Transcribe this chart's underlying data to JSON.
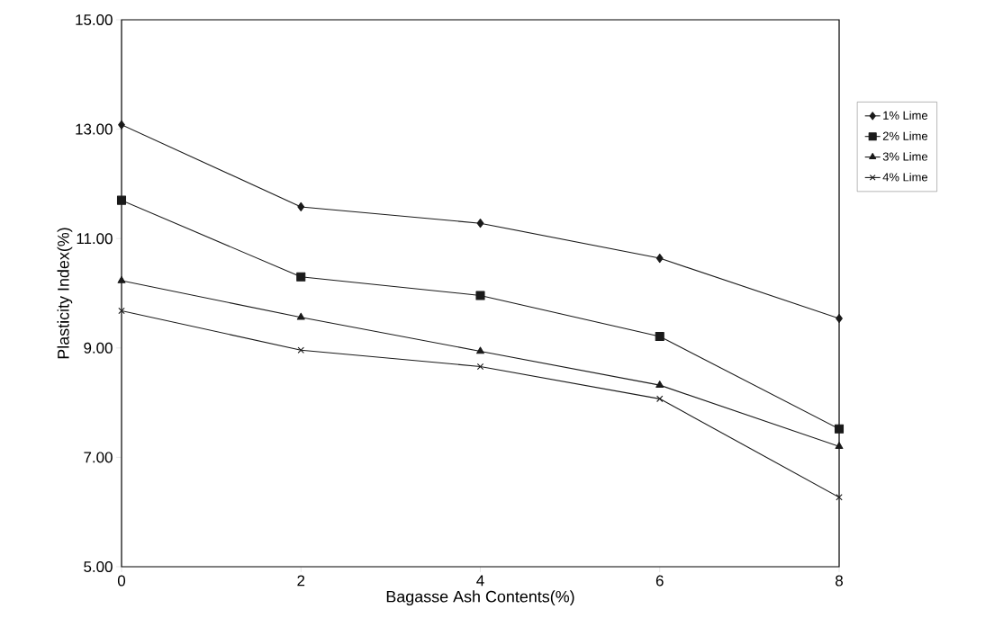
{
  "chart_data": {
    "type": "line",
    "xlabel": "Bagasse Ash Contents(%)",
    "ylabel": "Plasticity Index(%)",
    "x": [
      0,
      2,
      4,
      6,
      8
    ],
    "series": [
      {
        "name": "1% Lime",
        "color": "#1a1a1a",
        "marker": "diamond",
        "values": [
          13.08,
          11.58,
          11.28,
          10.64,
          9.54
        ]
      },
      {
        "name": "2% Lime",
        "color": "#1a1a1a",
        "marker": "square",
        "values": [
          11.7,
          10.3,
          9.96,
          9.21,
          7.52
        ]
      },
      {
        "name": "3% Lime",
        "color": "#1a1a1a",
        "marker": "triangle",
        "values": [
          10.23,
          9.56,
          8.94,
          8.32,
          7.2
        ]
      },
      {
        "name": "4% Lime",
        "color": "#1a1a1a",
        "marker": "cross",
        "values": [
          9.68,
          8.96,
          8.66,
          8.07,
          6.27
        ]
      }
    ],
    "xlim": [
      0,
      8
    ],
    "ylim": [
      5,
      15
    ],
    "xticks": [
      0,
      2,
      4,
      6,
      8
    ],
    "yticks": [
      {
        "value": 5,
        "label": "5.00"
      },
      {
        "value": 7,
        "label": "7.00"
      },
      {
        "value": 9,
        "label": "9.00"
      },
      {
        "value": 11,
        "label": "11.00"
      },
      {
        "value": 13,
        "label": "13.00"
      },
      {
        "value": 15,
        "label": "15.00"
      }
    ],
    "grid": false,
    "legend": "right",
    "line_style": "solid"
  }
}
